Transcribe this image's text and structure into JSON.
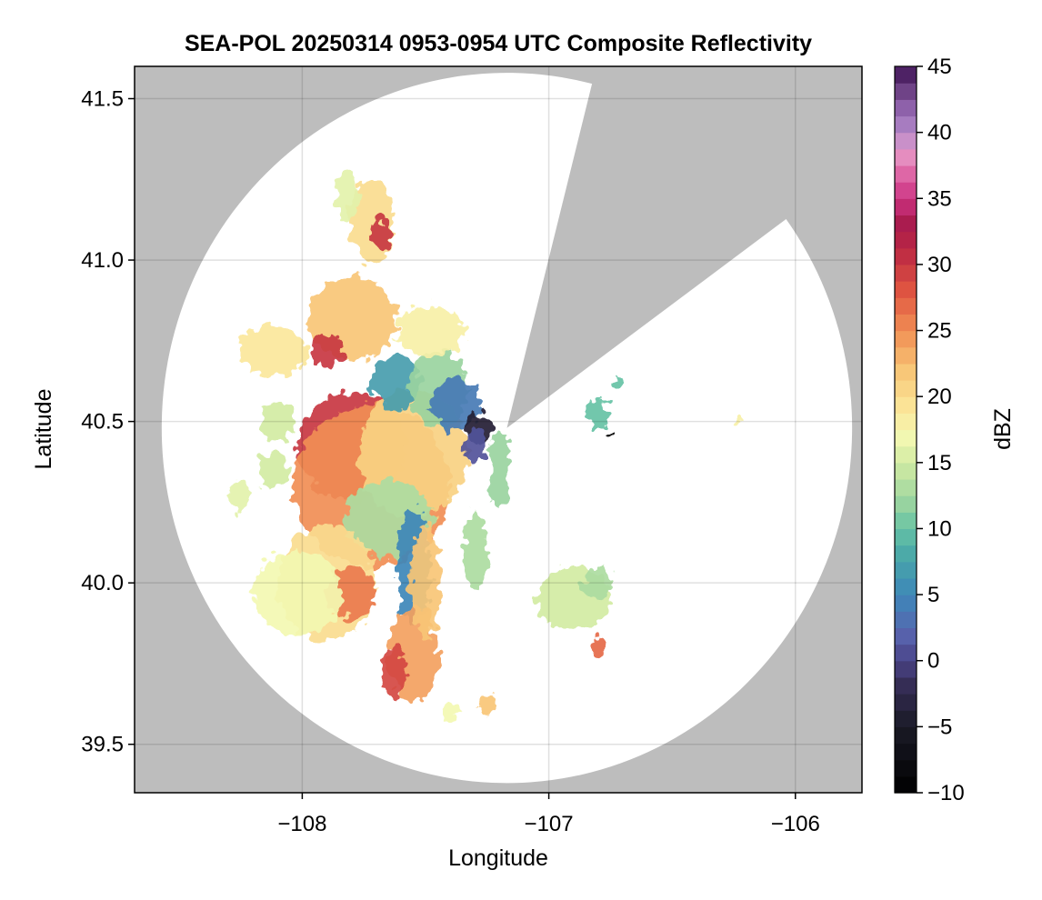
{
  "chart_data": {
    "type": "heatmap",
    "title": "SEA-POL 20250314 0953-0954 UTC Composite Reflectivity",
    "xlabel": "Longitude",
    "ylabel": "Latitude",
    "xlim": [
      -108.68,
      -105.73
    ],
    "ylim": [
      39.35,
      41.6
    ],
    "x_ticks": [
      -108,
      -107,
      -106
    ],
    "x_tick_labels": [
      "−108",
      "−107",
      "−106"
    ],
    "y_ticks": [
      39.5,
      40.0,
      40.5,
      41.0,
      41.5
    ],
    "y_tick_labels": [
      "39.5",
      "40.0",
      "40.5",
      "41.0",
      "41.5"
    ],
    "grid": true,
    "background_color": "#bdbdbd",
    "radar": {
      "center": [
        -107.17,
        40.48
      ],
      "range_lon": 1.4,
      "range_lat": 1.1,
      "blocked_sector": {
        "from_point": [
          -106.83,
          41.53
        ],
        "to_point": [
          -106.05,
          41.12
        ]
      }
    },
    "colorbar": {
      "label": "dBZ",
      "min": -10,
      "max": 45,
      "step": 1.25,
      "ticks": [
        -10,
        -5,
        0,
        5,
        10,
        15,
        20,
        25,
        30,
        35,
        40,
        45
      ],
      "tick_labels": [
        "−10",
        "−5",
        "0",
        "5",
        "10",
        "15",
        "20",
        "25",
        "30",
        "35",
        "40",
        "45"
      ],
      "stops": [
        {
          "v": -10,
          "c": "#000000"
        },
        {
          "v": -5,
          "c": "#1a1a26"
        },
        {
          "v": -2,
          "c": "#342c52"
        },
        {
          "v": 0,
          "c": "#4a4387"
        },
        {
          "v": 2,
          "c": "#5863ad"
        },
        {
          "v": 5,
          "c": "#3d87b9"
        },
        {
          "v": 8,
          "c": "#4aa8a8"
        },
        {
          "v": 10,
          "c": "#66c2a5"
        },
        {
          "v": 12,
          "c": "#9ad4a0"
        },
        {
          "v": 15,
          "c": "#d2eba3"
        },
        {
          "v": 17,
          "c": "#f3f8b2"
        },
        {
          "v": 19,
          "c": "#fbe79b"
        },
        {
          "v": 22,
          "c": "#f8c676"
        },
        {
          "v": 25,
          "c": "#f18e54"
        },
        {
          "v": 28,
          "c": "#df5541"
        },
        {
          "v": 31,
          "c": "#bd2a43"
        },
        {
          "v": 33,
          "c": "#a81a4c"
        },
        {
          "v": 35,
          "c": "#cc3382"
        },
        {
          "v": 37,
          "c": "#df6aa8"
        },
        {
          "v": 38.5,
          "c": "#e798c7"
        },
        {
          "v": 40,
          "c": "#b48acb"
        },
        {
          "v": 42,
          "c": "#8b5ea8"
        },
        {
          "v": 44,
          "c": "#5a2e6e"
        },
        {
          "v": 45,
          "c": "#3b0f55"
        }
      ]
    },
    "echo_cells": [
      {
        "lon": -107.8,
        "lat": 40.42,
        "rx": 0.22,
        "ry": 0.17,
        "dbz": 30
      },
      {
        "lon": -107.72,
        "lat": 40.3,
        "rx": 0.32,
        "ry": 0.25,
        "dbz": 25
      },
      {
        "lon": -107.55,
        "lat": 40.4,
        "rx": 0.22,
        "ry": 0.2,
        "dbz": 21
      },
      {
        "lon": -107.65,
        "lat": 40.2,
        "rx": 0.18,
        "ry": 0.12,
        "dbz": 13
      },
      {
        "lon": -107.9,
        "lat": 40.0,
        "rx": 0.2,
        "ry": 0.18,
        "dbz": 20
      },
      {
        "lon": -107.8,
        "lat": 39.97,
        "rx": 0.1,
        "ry": 0.08,
        "dbz": 26
      },
      {
        "lon": -108.02,
        "lat": 39.97,
        "rx": 0.18,
        "ry": 0.13,
        "dbz": 17
      },
      {
        "lon": -107.55,
        "lat": 40.05,
        "rx": 0.07,
        "ry": 0.18,
        "dbz": 5
      },
      {
        "lon": -107.55,
        "lat": 39.78,
        "rx": 0.1,
        "ry": 0.15,
        "dbz": 24
      },
      {
        "lon": -107.63,
        "lat": 39.72,
        "rx": 0.05,
        "ry": 0.08,
        "dbz": 29
      },
      {
        "lon": -107.5,
        "lat": 40.0,
        "rx": 0.06,
        "ry": 0.18,
        "dbz": 22
      },
      {
        "lon": -107.62,
        "lat": 40.62,
        "rx": 0.1,
        "ry": 0.08,
        "dbz": 7
      },
      {
        "lon": -107.45,
        "lat": 40.6,
        "rx": 0.12,
        "ry": 0.12,
        "dbz": 12
      },
      {
        "lon": -107.38,
        "lat": 40.55,
        "rx": 0.1,
        "ry": 0.08,
        "dbz": 4
      },
      {
        "lon": -107.28,
        "lat": 40.48,
        "rx": 0.05,
        "ry": 0.05,
        "dbz": -4
      },
      {
        "lon": -107.3,
        "lat": 40.42,
        "rx": 0.05,
        "ry": 0.05,
        "dbz": 1
      },
      {
        "lon": -107.48,
        "lat": 40.78,
        "rx": 0.14,
        "ry": 0.08,
        "dbz": 18
      },
      {
        "lon": -107.8,
        "lat": 40.82,
        "rx": 0.18,
        "ry": 0.13,
        "dbz": 22
      },
      {
        "lon": -107.9,
        "lat": 40.72,
        "rx": 0.07,
        "ry": 0.05,
        "dbz": 30
      },
      {
        "lon": -108.12,
        "lat": 40.72,
        "rx": 0.14,
        "ry": 0.08,
        "dbz": 19
      },
      {
        "lon": -107.72,
        "lat": 41.12,
        "rx": 0.09,
        "ry": 0.13,
        "dbz": 20
      },
      {
        "lon": -107.68,
        "lat": 41.08,
        "rx": 0.04,
        "ry": 0.05,
        "dbz": 30
      },
      {
        "lon": -107.82,
        "lat": 41.2,
        "rx": 0.05,
        "ry": 0.08,
        "dbz": 16
      },
      {
        "lon": -108.1,
        "lat": 40.5,
        "rx": 0.07,
        "ry": 0.06,
        "dbz": 15
      },
      {
        "lon": -108.12,
        "lat": 40.35,
        "rx": 0.06,
        "ry": 0.06,
        "dbz": 15
      },
      {
        "lon": -108.25,
        "lat": 40.27,
        "rx": 0.04,
        "ry": 0.05,
        "dbz": 16
      },
      {
        "lon": -107.2,
        "lat": 40.35,
        "rx": 0.04,
        "ry": 0.12,
        "dbz": 12
      },
      {
        "lon": -107.3,
        "lat": 40.1,
        "rx": 0.05,
        "ry": 0.12,
        "dbz": 13
      },
      {
        "lon": -106.9,
        "lat": 39.95,
        "rx": 0.15,
        "ry": 0.1,
        "dbz": 15
      },
      {
        "lon": -106.8,
        "lat": 40.0,
        "rx": 0.06,
        "ry": 0.05,
        "dbz": 13
      },
      {
        "lon": -106.8,
        "lat": 39.8,
        "rx": 0.03,
        "ry": 0.04,
        "dbz": 27
      },
      {
        "lon": -106.8,
        "lat": 40.52,
        "rx": 0.05,
        "ry": 0.04,
        "dbz": 10
      },
      {
        "lon": -106.72,
        "lat": 40.62,
        "rx": 0.02,
        "ry": 0.02,
        "dbz": 10
      },
      {
        "lon": -106.23,
        "lat": 40.5,
        "rx": 0.015,
        "ry": 0.012,
        "dbz": 18
      },
      {
        "lon": -106.75,
        "lat": 40.455,
        "rx": 0.01,
        "ry": 0.01,
        "dbz": -10
      },
      {
        "lon": -107.25,
        "lat": 39.62,
        "rx": 0.04,
        "ry": 0.03,
        "dbz": 22
      },
      {
        "lon": -107.4,
        "lat": 39.6,
        "rx": 0.03,
        "ry": 0.03,
        "dbz": 17
      }
    ]
  }
}
